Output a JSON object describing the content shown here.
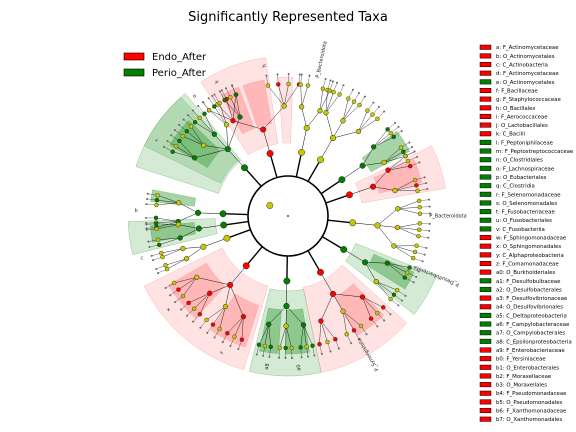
{
  "chart_data": {
    "type": "cladogram",
    "title": "Significantly Represented Taxa",
    "legend_placement": "top-left",
    "legend": [
      {
        "name": "Endo_After",
        "color": "#ff0000"
      },
      {
        "name": "Perio_After",
        "color": "#008000"
      }
    ],
    "groups": {
      "Endo_After": {
        "color": "#ff0000",
        "shade": "#ff8080"
      },
      "Perio_After": {
        "color": "#008000",
        "shade": "#3aa03a"
      }
    },
    "neutral_node_color": "#c8c800",
    "outer_labels": [
      "k",
      "h",
      "P_Bacteroidota",
      "P_Bacteroidota",
      "P_Desulfobacterota",
      "P_Synergistota",
      "a0",
      "a8",
      "z",
      "x",
      "c",
      "q",
      "r",
      "o"
    ],
    "biomarkers": [
      {
        "key": "a",
        "name": "F_Actinomycetaceae",
        "group": "Endo_After"
      },
      {
        "key": "b",
        "name": "O_Actinomycetales",
        "group": "Endo_After"
      },
      {
        "key": "c",
        "name": "C_Actinobacteria",
        "group": "Endo_After"
      },
      {
        "key": "d",
        "name": "F_Actinomycetaceae",
        "group": "Endo_After"
      },
      {
        "key": "e",
        "name": "O_Actinomycetales",
        "group": "Perio_After"
      },
      {
        "key": "f",
        "name": "F_Bacillaceae",
        "group": "Endo_After"
      },
      {
        "key": "g",
        "name": "F_Staphylococcaceae",
        "group": "Endo_After"
      },
      {
        "key": "h",
        "name": "O_Bacillales",
        "group": "Endo_After"
      },
      {
        "key": "i",
        "name": "F_Aerococcaceae",
        "group": "Endo_After"
      },
      {
        "key": "j",
        "name": "O_Lactobacillales",
        "group": "Endo_After"
      },
      {
        "key": "k",
        "name": "C_Bacilli",
        "group": "Endo_After"
      },
      {
        "key": "l",
        "name": "F_Peptoniphilaceae",
        "group": "Perio_After"
      },
      {
        "key": "m",
        "name": "F_Peptostreptococcaceae",
        "group": "Perio_After"
      },
      {
        "key": "n",
        "name": "O_Clostridiales",
        "group": "Perio_After"
      },
      {
        "key": "o",
        "name": "F_Lachnospiraceae",
        "group": "Perio_After"
      },
      {
        "key": "p",
        "name": "O_Eubacteriales",
        "group": "Perio_After"
      },
      {
        "key": "q",
        "name": "C_Clostridia",
        "group": "Perio_After"
      },
      {
        "key": "r",
        "name": "F_Selenomonadaceae",
        "group": "Perio_After"
      },
      {
        "key": "s",
        "name": "O_Selenomonadales",
        "group": "Perio_After"
      },
      {
        "key": "t",
        "name": "F_Fusobacteriaceae",
        "group": "Perio_After"
      },
      {
        "key": "u",
        "name": "O_Fusobacteriales",
        "group": "Perio_After"
      },
      {
        "key": "v",
        "name": "C_Fusobacteriia",
        "group": "Perio_After"
      },
      {
        "key": "w",
        "name": "F_Sphingomonadaceae",
        "group": "Endo_After"
      },
      {
        "key": "x",
        "name": "O_Sphingomonadales",
        "group": "Endo_After"
      },
      {
        "key": "y",
        "name": "C_Alphaproteobacteria",
        "group": "Endo_After"
      },
      {
        "key": "z",
        "name": "F_Comamonadaceae",
        "group": "Endo_After"
      },
      {
        "key": "a0",
        "name": "O_Burkholderiales",
        "group": "Endo_After"
      },
      {
        "key": "a1",
        "name": "F_Desulfobulbaceae",
        "group": "Perio_After"
      },
      {
        "key": "a2",
        "name": "O_Desulfobacterales",
        "group": "Perio_After"
      },
      {
        "key": "a3",
        "name": "F_Desulfovibrionaceae",
        "group": "Endo_After"
      },
      {
        "key": "a4",
        "name": "O_Desulfovibrionales",
        "group": "Endo_After"
      },
      {
        "key": "a5",
        "name": "C_Deltaproteobacteria",
        "group": "Perio_After"
      },
      {
        "key": "a6",
        "name": "F_Campylobacteraceae",
        "group": "Perio_After"
      },
      {
        "key": "a7",
        "name": "O_Campylobacterales",
        "group": "Perio_After"
      },
      {
        "key": "a8",
        "name": "C_Epsilonproteobacteria",
        "group": "Perio_After"
      },
      {
        "key": "a9",
        "name": "F_Enterobacteriaceae",
        "group": "Endo_After"
      },
      {
        "key": "b0",
        "name": "F_Yersiniaceae",
        "group": "Endo_After"
      },
      {
        "key": "b1",
        "name": "O_Enterobacterales",
        "group": "Endo_After"
      },
      {
        "key": "b2",
        "name": "F_Moraxellaceae",
        "group": "Endo_After"
      },
      {
        "key": "b3",
        "name": "O_Moraxellales",
        "group": "Endo_After"
      },
      {
        "key": "b4",
        "name": "F_Pseudomonadaceae",
        "group": "Endo_After"
      },
      {
        "key": "b5",
        "name": "O_Pseudomonadales",
        "group": "Endo_After"
      },
      {
        "key": "b6",
        "name": "F_Xanthomonadaceae",
        "group": "Endo_After"
      },
      {
        "key": "b7",
        "name": "O_Xanthomonadales",
        "group": "Endo_After"
      }
    ],
    "sectors": [
      {
        "from": 327,
        "to": 352,
        "group": "Endo_After",
        "depth": 1
      },
      {
        "from": 331,
        "to": 339,
        "group": "Endo_After",
        "depth": 3
      },
      {
        "from": 341,
        "to": 350,
        "group": "Endo_After",
        "depth": 3
      },
      {
        "from": 356,
        "to": 362,
        "group": "Endo_After",
        "depth": 0
      },
      {
        "from": 288,
        "to": 320,
        "group": "Perio_After",
        "depth": 1
      },
      {
        "from": 296,
        "to": 318,
        "group": "Perio_After",
        "depth": 2
      },
      {
        "from": 301,
        "to": 314,
        "group": "Perio_After",
        "depth": 3
      },
      {
        "from": 276,
        "to": 281,
        "group": "Perio_After",
        "depth": 3
      },
      {
        "from": 256,
        "to": 268,
        "group": "Perio_After",
        "depth": 1
      },
      {
        "from": 259,
        "to": 266,
        "group": "Perio_After",
        "depth": 3
      },
      {
        "from": 196,
        "to": 244,
        "group": "Endo_After",
        "depth": 1
      },
      {
        "from": 198,
        "to": 214,
        "group": "Endo_After",
        "depth": 3
      },
      {
        "from": 222,
        "to": 240,
        "group": "Endo_After",
        "depth": 3
      },
      {
        "from": 168,
        "to": 194,
        "group": "Perio_After",
        "depth": 2
      },
      {
        "from": 171,
        "to": 181,
        "group": "Perio_After",
        "depth": 3
      },
      {
        "from": 184,
        "to": 192,
        "group": "Perio_After",
        "depth": 3
      },
      {
        "from": 132,
        "to": 168,
        "group": "Endo_After",
        "depth": 1
      },
      {
        "from": 136,
        "to": 150,
        "group": "Endo_After",
        "depth": 3
      },
      {
        "from": 112,
        "to": 128,
        "group": "Perio_After",
        "depth": 1
      },
      {
        "from": 114,
        "to": 122,
        "group": "Perio_After",
        "depth": 3
      },
      {
        "from": 64,
        "to": 80,
        "group": "Endo_After",
        "depth": 2
      },
      {
        "from": 66,
        "to": 76,
        "group": "Endo_After",
        "depth": 3
      },
      {
        "from": 52,
        "to": 62,
        "group": "Perio_After",
        "depth": 3
      }
    ],
    "clades": [
      {
        "a": 344,
        "s": 40,
        "n": 7,
        "g": "Endo_After"
      },
      {
        "a": 318,
        "s": 46,
        "n": 14,
        "g": "Perio_After"
      },
      {
        "a": 272,
        "s": 14,
        "n": 5,
        "g": "Perio_After"
      },
      {
        "a": 262,
        "s": 10,
        "n": 4,
        "g": "Perio_After"
      },
      {
        "a": 250,
        "s": 8,
        "n": 3,
        "g": null
      },
      {
        "a": 220,
        "s": 46,
        "n": 12,
        "g": "Endo_After"
      },
      {
        "a": 181,
        "s": 26,
        "n": 8,
        "g": "Perio_After"
      },
      {
        "a": 150,
        "s": 36,
        "n": 10,
        "g": "Endo_After"
      },
      {
        "a": 121,
        "s": 16,
        "n": 5,
        "g": "Perio_After"
      },
      {
        "a": 96,
        "s": 28,
        "n": 8,
        "g": null
      },
      {
        "a": 71,
        "s": 16,
        "n": 5,
        "g": "Endo_After"
      },
      {
        "a": 56,
        "s": 14,
        "n": 5,
        "g": "Perio_After"
      },
      {
        "a": 30,
        "s": 28,
        "n": 8,
        "g": null
      },
      {
        "a": 12,
        "s": 14,
        "n": 4,
        "g": null
      }
    ]
  }
}
